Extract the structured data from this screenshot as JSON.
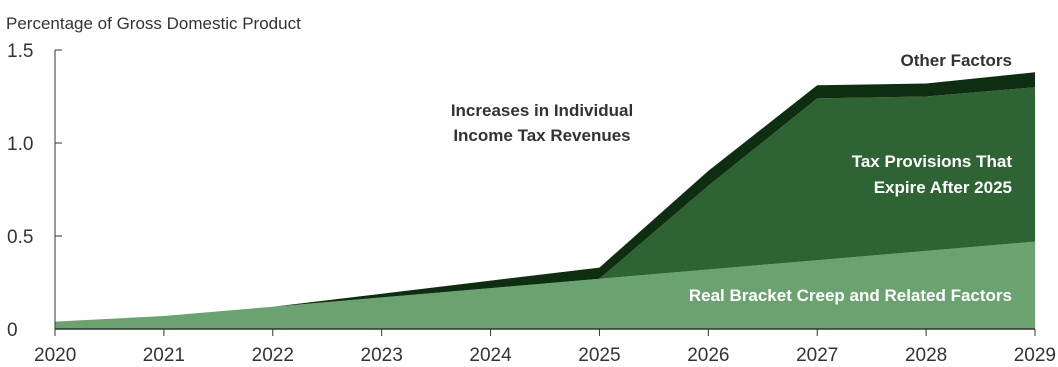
{
  "chart_data": {
    "type": "area",
    "ylabel": "Percentage of Gross Domestic Product",
    "x": [
      2020,
      2021,
      2022,
      2023,
      2024,
      2025,
      2026,
      2027,
      2028,
      2029
    ],
    "xticks": [
      "2020",
      "2021",
      "2022",
      "2023",
      "2024",
      "2025",
      "2026",
      "2027",
      "2028",
      "2029"
    ],
    "ylim": [
      0,
      1.5
    ],
    "yticks": [
      {
        "value": 0,
        "label": "0"
      },
      {
        "value": 0.5,
        "label": "0.5"
      },
      {
        "value": 1.0,
        "label": "1.0"
      },
      {
        "value": 1.5,
        "label": "1.5"
      }
    ],
    "stacked": true,
    "series": [
      {
        "name": "Real Bracket Creep and Related Factors",
        "color": "#6aa36f",
        "values": [
          0.04,
          0.07,
          0.12,
          0.17,
          0.22,
          0.27,
          0.32,
          0.37,
          0.42,
          0.47
        ]
      },
      {
        "name": "Tax Provisions That Expire After 2025",
        "color": "#2e6433",
        "values": [
          0,
          0,
          0,
          0,
          0,
          0,
          0.45,
          0.87,
          0.83,
          0.83
        ]
      },
      {
        "name": "Other Factors",
        "color": "#0d2e10",
        "values": [
          0,
          0,
          0,
          0.02,
          0.04,
          0.06,
          0.08,
          0.07,
          0.07,
          0.08
        ]
      }
    ],
    "annotations": {
      "title_line1": "Increases in Individual",
      "title_line2": "Income Tax Revenues"
    },
    "grid": false
  }
}
